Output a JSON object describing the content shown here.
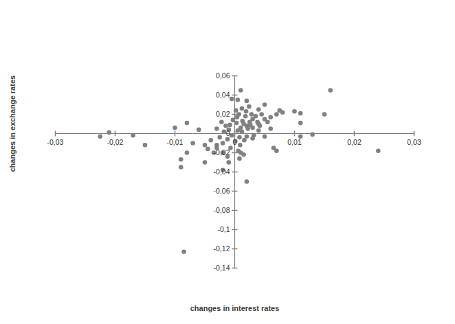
{
  "chart_data": {
    "type": "scatter",
    "x_label": "changes in interest rates",
    "y_label": "changes in exchange rates",
    "color": "#808080",
    "marker": "circle",
    "grid": false,
    "xlim": [
      -0.03,
      0.03
    ],
    "ylim": [
      -0.14,
      0.06
    ],
    "xticks": [
      {
        "value": -0.03,
        "label": "-0,03"
      },
      {
        "value": -0.02,
        "label": "-0,02"
      },
      {
        "value": -0.01,
        "label": "-0,01"
      },
      0,
      {
        "value": 0.01,
        "label": "0,01"
      },
      {
        "value": 0.02,
        "label": "0,02"
      },
      {
        "value": 0.03,
        "label": "0,03"
      }
    ],
    "yticks": [
      {
        "value": 0.06,
        "label": "0,06"
      },
      {
        "value": 0.04,
        "label": "0,04"
      },
      {
        "value": 0.02,
        "label": "0,02"
      },
      0,
      {
        "value": -0.02,
        "label": "-0,02"
      },
      {
        "value": -0.04,
        "label": "-0,04"
      },
      {
        "value": -0.06,
        "label": "-0,06"
      },
      {
        "value": -0.08,
        "label": "-0,08"
      },
      {
        "value": -0.1,
        "label": "-0,1"
      },
      {
        "value": -0.12,
        "label": "-0,12"
      },
      {
        "value": -0.14,
        "label": "-0,14"
      }
    ],
    "x": [
      -0.021,
      -0.0225,
      -0.017,
      -0.015,
      -0.01,
      -0.008,
      -0.0085,
      -0.009,
      -0.009,
      -0.008,
      -0.007,
      -0.006,
      -0.005,
      0.016,
      0.015,
      0.024,
      0.013,
      0.011,
      0.01,
      0.011,
      0.011,
      0.008,
      0.007,
      0.0075,
      0.007,
      0.0065,
      0.002,
      0.001,
      0.0005,
      -0.0005,
      0.002,
      0.005,
      0.004,
      0.005,
      0.004,
      0.003,
      -0.002,
      -0.001,
      -0.002,
      0.001,
      -0.003,
      -0.004,
      -0.003,
      0.0005,
      -0.0005,
      0.001,
      0.0015,
      0.002,
      -0.001,
      0.0008,
      0.0012,
      -0.0012,
      0.0025,
      0.003,
      0.0018,
      0.0022,
      -0.0015,
      -0.002,
      0.0003,
      -0.0003,
      0.0007,
      0.0028,
      0.0035,
      0.003,
      0.0032,
      0.004,
      0.0045,
      -0.0025,
      -0.0018,
      0.0001,
      0.0009,
      -0.0007,
      0.0016,
      0.002,
      0.0004,
      0.0013,
      -0.0008,
      0.0026,
      0.0038,
      0.0042,
      -0.003,
      -0.0035,
      0.0006,
      0.0002,
      0.0012,
      0.0019,
      0.0024,
      -0.0022,
      0.006,
      0.005,
      0.0055,
      0.006,
      -0.0045,
      -0.005,
      -0.0012,
      0.0008,
      0.0015
    ],
    "values": [
      0.001,
      -0.003,
      -0.002,
      -0.012,
      0.006,
      0.011,
      -0.123,
      -0.035,
      -0.027,
      -0.02,
      -0.01,
      0.004,
      -0.03,
      0.045,
      0.02,
      -0.018,
      -0.001,
      -0.003,
      0.023,
      0.021,
      0.011,
      0.022,
      0.02,
      0.024,
      -0.018,
      -0.015,
      -0.05,
      0.045,
      0.035,
      0.036,
      0.034,
      0.03,
      0.025,
      0.015,
      0.01,
      -0.005,
      -0.02,
      -0.03,
      -0.038,
      -0.02,
      -0.015,
      -0.007,
      0.005,
      0.003,
      -0.002,
      0.006,
      0.01,
      0.008,
      0.004,
      -0.004,
      0.002,
      -0.006,
      0.012,
      0.015,
      0.018,
      0.005,
      0.008,
      -0.01,
      0.011,
      0.014,
      0.02,
      0.02,
      0.018,
      0.006,
      -0.002,
      0.003,
      0.02,
      -0.004,
      0.002,
      -0.008,
      -0.012,
      -0.015,
      -0.007,
      -0.003,
      0.017,
      0.013,
      0.009,
      0.009,
      0.012,
      0.008,
      -0.012,
      -0.02,
      -0.018,
      0.024,
      0.026,
      0.023,
      0.028,
      0.012,
      0.005,
      -0.003,
      0.012,
      0.017,
      -0.016,
      -0.012,
      -0.024,
      -0.026,
      -0.022
    ]
  }
}
